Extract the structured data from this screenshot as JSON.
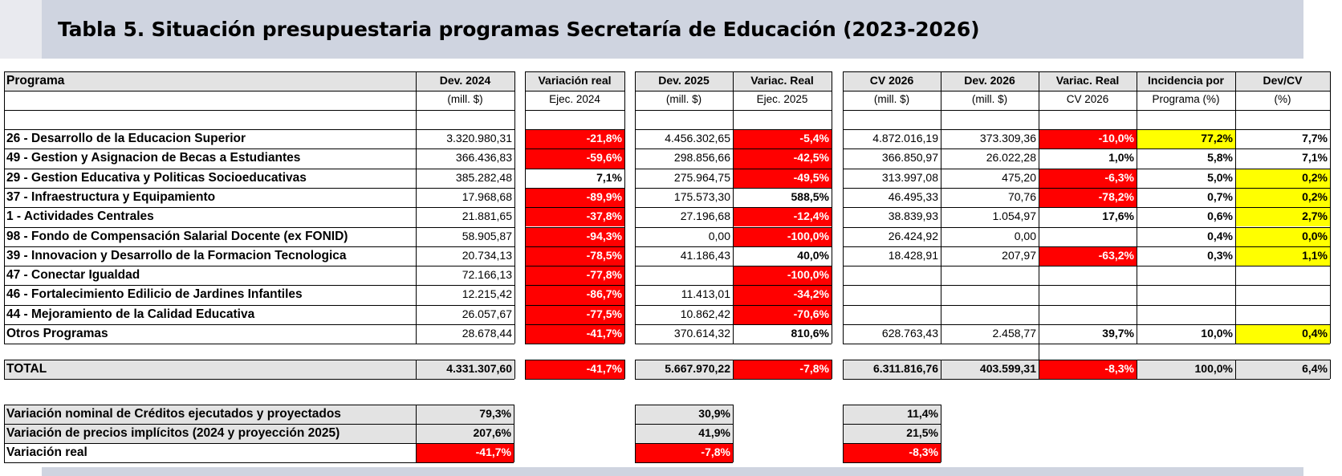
{
  "title": "Tabla 5. Situación presupuestaria programas Secretaría de Educación (2023-2026)",
  "headers": {
    "programa": "Programa",
    "dev2024": [
      "Dev. 2024",
      "(mill. $)"
    ],
    "var2024": [
      "Variación real",
      "Ejec. 2024"
    ],
    "dev2025": [
      "Dev. 2025",
      "(mill. $)"
    ],
    "var2025": [
      "Variac. Real",
      "Ejec. 2025"
    ],
    "cv2026": [
      "CV 2026",
      "(mill. $)"
    ],
    "dev2026": [
      "Dev. 2026",
      "(mill. $)"
    ],
    "var2026": [
      "Variac. Real",
      "CV 2026"
    ],
    "incidencia": [
      "Incidencia por",
      "Programa (%)"
    ],
    "devcv": [
      "Dev/CV",
      "(%)"
    ]
  },
  "rows": [
    {
      "programa": "26 - Desarrollo de la Educacion Superior",
      "dev2024": "3.320.980,31",
      "var2024": "-21,8%",
      "dev2025": "4.456.302,65",
      "var2025": "-5,4%",
      "cv2026": "4.872.016,19",
      "dev2026": "373.309,36",
      "var2026": "-10,0%",
      "incidencia": "77,2%",
      "devcv": "7,7%"
    },
    {
      "programa": "49 - Gestion y Asignacion de Becas a Estudiantes",
      "dev2024": "366.436,83",
      "var2024": "-59,6%",
      "dev2025": "298.856,66",
      "var2025": "-42,5%",
      "cv2026": "366.850,97",
      "dev2026": "26.022,28",
      "var2026": "1,0%",
      "incidencia": "5,8%",
      "devcv": "7,1%"
    },
    {
      "programa": "29 - Gestion Educativa y Politicas Socioeducativas",
      "dev2024": "385.282,48",
      "var2024": "7,1%",
      "dev2025": "275.964,75",
      "var2025": "-49,5%",
      "cv2026": "313.997,08",
      "dev2026": "475,20",
      "var2026": "-6,3%",
      "incidencia": "5,0%",
      "devcv": "0,2%"
    },
    {
      "programa": "37 - Infraestructura y Equipamiento",
      "dev2024": "17.968,68",
      "var2024": "-89,9%",
      "dev2025": "175.573,30",
      "var2025": "588,5%",
      "cv2026": "46.495,33",
      "dev2026": "70,76",
      "var2026": "-78,2%",
      "incidencia": "0,7%",
      "devcv": "0,2%"
    },
    {
      "programa": "1 - Actividades Centrales",
      "dev2024": "21.881,65",
      "var2024": "-37,8%",
      "dev2025": "27.196,68",
      "var2025": "-12,4%",
      "cv2026": "38.839,93",
      "dev2026": "1.054,97",
      "var2026": "17,6%",
      "incidencia": "0,6%",
      "devcv": "2,7%"
    },
    {
      "programa": "98 - Fondo de Compensación Salarial Docente (ex FONID)",
      "dev2024": "58.905,87",
      "var2024": "-94,3%",
      "dev2025": "0,00",
      "var2025": "-100,0%",
      "cv2026": "26.424,92",
      "dev2026": "0,00",
      "var2026": "",
      "incidencia": "0,4%",
      "devcv": "0,0%"
    },
    {
      "programa": "39 - Innovacion y Desarrollo de la Formacion Tecnologica",
      "dev2024": "20.734,13",
      "var2024": "-78,5%",
      "dev2025": "41.186,43",
      "var2025": "40,0%",
      "cv2026": "18.428,91",
      "dev2026": "207,97",
      "var2026": "-63,2%",
      "incidencia": "0,3%",
      "devcv": "1,1%"
    },
    {
      "programa": "47 - Conectar Igualdad",
      "dev2024": "72.166,13",
      "var2024": "-77,8%",
      "dev2025": "",
      "var2025": "-100,0%",
      "cv2026": "",
      "dev2026": "",
      "var2026": "",
      "incidencia": "",
      "devcv": ""
    },
    {
      "programa": "46 - Fortalecimiento Edilicio de Jardines Infantiles",
      "dev2024": "12.215,42",
      "var2024": "-86,7%",
      "dev2025": "11.413,01",
      "var2025": "-34,2%",
      "cv2026": "",
      "dev2026": "",
      "var2026": "",
      "incidencia": "",
      "devcv": ""
    },
    {
      "programa": "44 - Mejoramiento de la Calidad Educativa",
      "dev2024": "26.057,67",
      "var2024": "-77,5%",
      "dev2025": "10.862,42",
      "var2025": "-70,6%",
      "cv2026": "",
      "dev2026": "",
      "var2026": "",
      "incidencia": "",
      "devcv": ""
    },
    {
      "programa": "Otros Programas",
      "dev2024": "28.678,44",
      "var2024": "-41,7%",
      "dev2025": "370.614,32",
      "var2025": "810,6%",
      "cv2026": "628.763,43",
      "dev2026": "2.458,77",
      "var2026": "39,7%",
      "incidencia": "10,0%",
      "devcv": "0,4%"
    }
  ],
  "total": {
    "programa": "TOTAL",
    "dev2024": "4.331.307,60",
    "var2024": "-41,7%",
    "dev2025": "5.667.970,22",
    "var2025": "-7,8%",
    "cv2026": "6.311.816,76",
    "dev2026": "403.599,31",
    "var2026": "-8,3%",
    "incidencia": "100,0%",
    "devcv": "6,4%"
  },
  "summary": [
    {
      "label": "Variación nominal de Créditos ejecutados y proyectados",
      "v2024": "79,3%",
      "v2025": "30,9%",
      "v2026": "11,4%"
    },
    {
      "label": "Variación de precios implícitos (2024 y proyección 2025)",
      "v2024": "207,6%",
      "v2025": "41,9%",
      "v2026": "21,5%"
    },
    {
      "label": "Variación real",
      "v2024": "-41,7%",
      "v2025": "-7,8%",
      "v2026": "-8,3%"
    }
  ],
  "colors": {
    "negative": "#ff0000",
    "highlight": "#ffff00",
    "band": "#cfd4e0",
    "gray": "#e3e3e3"
  }
}
